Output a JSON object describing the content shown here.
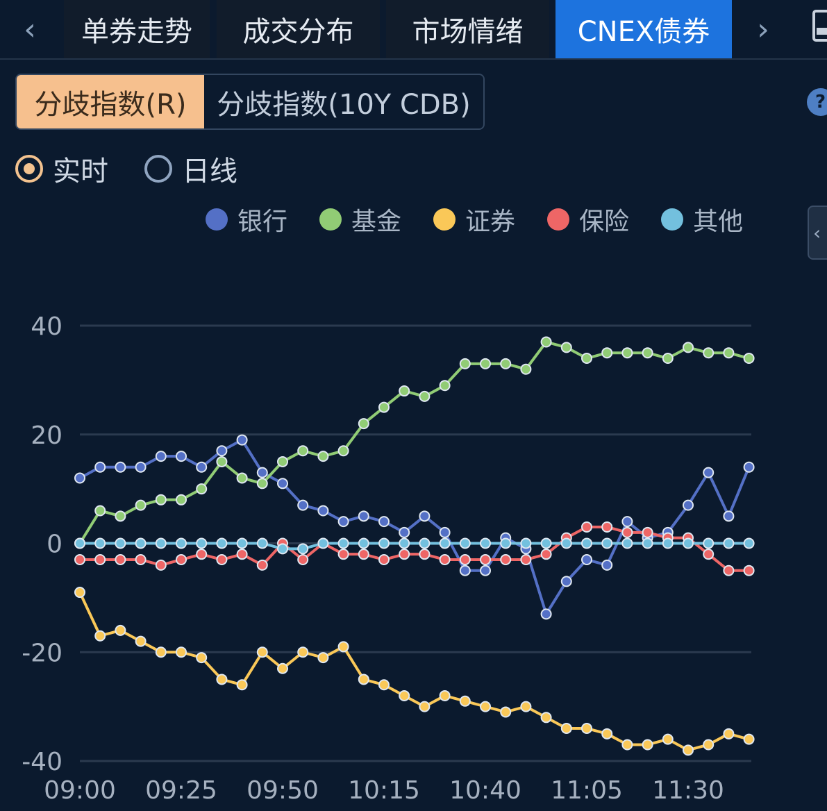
{
  "tabs": {
    "prev_icon": "‹",
    "next_icon": "›",
    "items": [
      {
        "label": "单券走势"
      },
      {
        "label": "成交分布"
      },
      {
        "label": "市场情绪"
      },
      {
        "label": "CNEX债券"
      }
    ]
  },
  "segments": [
    {
      "label": "分歧指数(R)"
    },
    {
      "label": "分歧指数(10Y CDB)"
    }
  ],
  "help_label": "?",
  "radios": [
    {
      "label": "实时"
    },
    {
      "label": "日线"
    }
  ],
  "legend_toggle_label": "‹",
  "colors": {
    "tab_active": "#1d73de",
    "segment_active": "#f6c08e",
    "radio_checked": "#f3c28f"
  },
  "chart_data": {
    "type": "line",
    "title": "",
    "xlabel": "",
    "ylabel": "",
    "ylim": [
      -40,
      40
    ],
    "yticks": [
      40,
      20,
      0,
      -20,
      -40
    ],
    "x_tick_labels": [
      "09:00",
      "09:25",
      "09:50",
      "10:15",
      "10:40",
      "11:05",
      "11:30"
    ],
    "x_tick_step": 5,
    "grid": true,
    "legend_position": "top",
    "series": [
      {
        "name": "银行",
        "color": "#5470c6",
        "values": [
          12,
          14,
          14,
          14,
          16,
          16,
          14,
          17,
          19,
          13,
          11,
          7,
          6,
          4,
          5,
          4,
          2,
          5,
          2,
          -5,
          -5,
          1,
          -1,
          -13,
          -7,
          -3,
          -4,
          4,
          1,
          2,
          7,
          13,
          5,
          14
        ]
      },
      {
        "name": "基金",
        "color": "#91cc75",
        "values": [
          0,
          6,
          5,
          7,
          8,
          8,
          10,
          15,
          12,
          11,
          15,
          17,
          16,
          17,
          22,
          25,
          28,
          27,
          29,
          33,
          33,
          33,
          32,
          37,
          36,
          34,
          35,
          35,
          35,
          34,
          36,
          35,
          35,
          34
        ]
      },
      {
        "name": "证券",
        "color": "#fac858",
        "values": [
          -9,
          -17,
          -16,
          -18,
          -20,
          -20,
          -21,
          -25,
          -26,
          -20,
          -23,
          -20,
          -21,
          -19,
          -25,
          -26,
          -28,
          -30,
          -28,
          -29,
          -30,
          -31,
          -30,
          -32,
          -34,
          -34,
          -35,
          -37,
          -37,
          -36,
          -38,
          -37,
          -35,
          -36
        ]
      },
      {
        "name": "保险",
        "color": "#ee6666",
        "values": [
          -3,
          -3,
          -3,
          -3,
          -4,
          -3,
          -2,
          -3,
          -2,
          -4,
          0,
          -3,
          0,
          -2,
          -2,
          -3,
          -2,
          -2,
          -3,
          -3,
          -3,
          -3,
          -3,
          -2,
          1,
          3,
          3,
          2,
          2,
          1,
          1,
          -2,
          -5,
          -5
        ]
      },
      {
        "name": "其他",
        "color": "#73c0de",
        "values": [
          0,
          0,
          0,
          0,
          0,
          0,
          0,
          0,
          0,
          0,
          -1,
          -1,
          0,
          0,
          0,
          0,
          0,
          0,
          0,
          0,
          0,
          0,
          0,
          0,
          0,
          0,
          0,
          0,
          0,
          0,
          0,
          0,
          0,
          0
        ]
      }
    ]
  }
}
